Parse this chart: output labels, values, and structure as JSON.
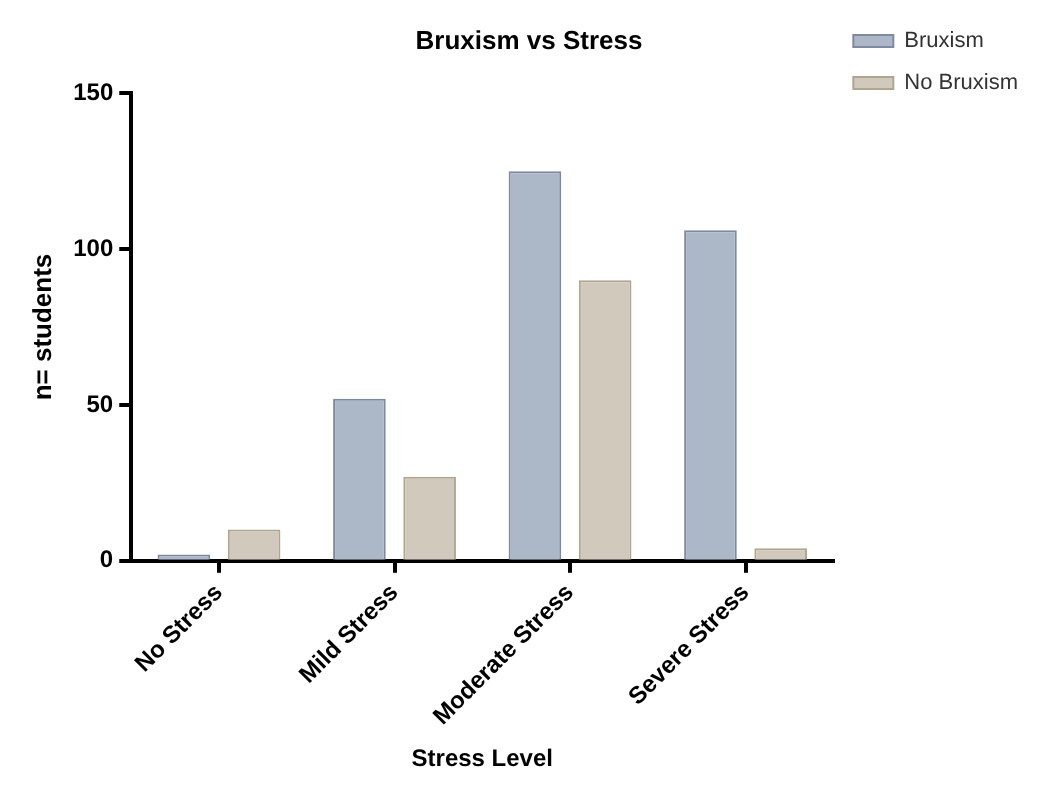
{
  "chart_data": {
    "type": "bar",
    "title": "Bruxism vs Stress",
    "xlabel": "Stress Level",
    "ylabel": "n= students",
    "categories": [
      "No Stress",
      "Mild Stress",
      "Moderate Stress",
      "Severe Stress"
    ],
    "series": [
      {
        "name": "Bruxism",
        "color": "#acb7c8",
        "values": [
          2,
          52,
          125,
          106
        ]
      },
      {
        "name": "No Bruxism",
        "color": "#d0c9bc",
        "values": [
          10,
          27,
          90,
          4
        ]
      }
    ],
    "ylim": [
      0,
      150
    ],
    "yticks": [
      0,
      50,
      100,
      150
    ],
    "grid": false,
    "legend": "top right"
  }
}
